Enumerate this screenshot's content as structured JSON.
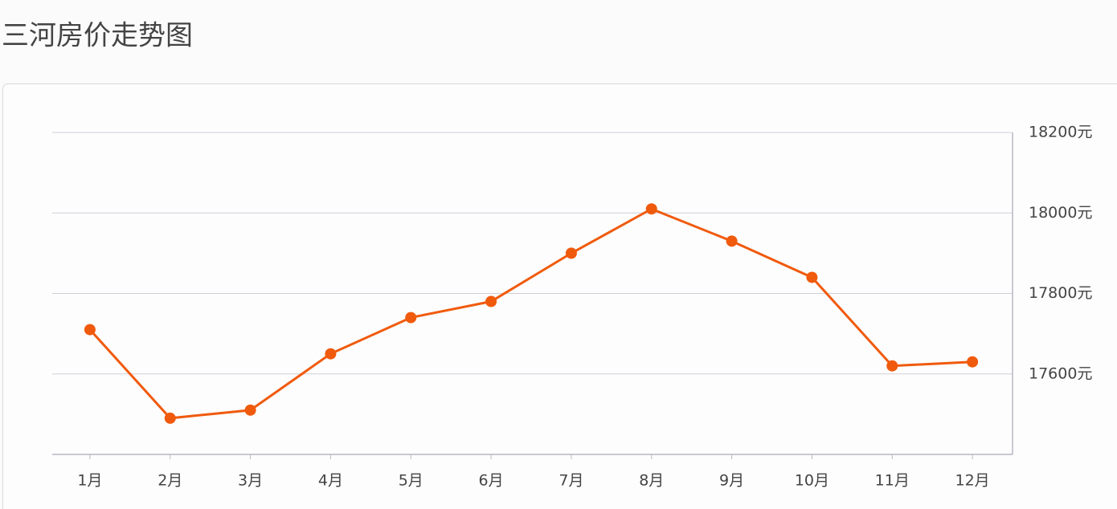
{
  "chart_data": {
    "type": "line",
    "title": "三河房价走势图",
    "categories": [
      "1月",
      "2月",
      "3月",
      "4月",
      "5月",
      "6月",
      "7月",
      "8月",
      "9月",
      "10月",
      "11月",
      "12月"
    ],
    "series": [
      {
        "color": "#f05a0c",
        "values": [
          17710,
          17490,
          17510,
          17650,
          17740,
          17780,
          17900,
          18010,
          17930,
          17840,
          17620,
          17630
        ]
      }
    ],
    "ylim": [
      17400,
      18200
    ],
    "yticks": [
      {
        "value": 17600,
        "label": "17600元"
      },
      {
        "value": 17800,
        "label": "17800元"
      },
      {
        "value": 18000,
        "label": "18000元"
      },
      {
        "value": 18200,
        "label": "18200元"
      }
    ],
    "grid": true,
    "y_axis_side": "right"
  }
}
